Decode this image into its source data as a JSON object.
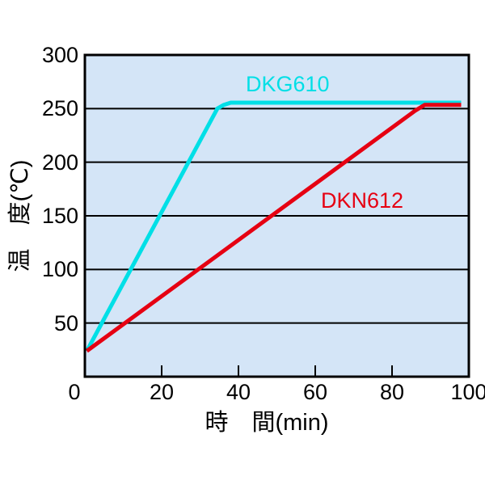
{
  "chart_data": {
    "type": "line",
    "title": "",
    "xlabel": "時　間(min)",
    "ylabel": "温　度(℃)",
    "xlim": [
      0,
      100
    ],
    "ylim": [
      0,
      300
    ],
    "x_tick_labels": [
      0,
      20,
      40,
      60,
      80,
      100
    ],
    "y_tick_labels": [
      50,
      100,
      150,
      200,
      250,
      300
    ],
    "y_gridlines": [
      50,
      100,
      150,
      200,
      250
    ],
    "x_inner_tick_marks": [
      20,
      40,
      60,
      80
    ],
    "grid": "horizontal-only",
    "legend_position": "inline-annotations",
    "plot_bg_color": "#d4e5f7",
    "axis_color": "#000000",
    "grid_color": "#000000",
    "series": [
      {
        "name": "DKG610",
        "color": "#00dfe6",
        "description": "fast heat-up: reaches ~255°C in about 37 minutes, then holds",
        "points": [
          [
            0.5,
            24
          ],
          [
            34.5,
            250
          ],
          [
            36.2,
            253.5
          ],
          [
            38,
            255.5
          ],
          [
            98,
            255.5
          ]
        ]
      },
      {
        "name": "DKN612",
        "color": "#e60012",
        "description": "slow heat-up: reaches ~253°C in about 88 minutes, then holds",
        "points": [
          [
            0.5,
            24
          ],
          [
            86,
            248
          ],
          [
            88.5,
            253.5
          ],
          [
            98,
            253.5
          ]
        ]
      }
    ]
  }
}
